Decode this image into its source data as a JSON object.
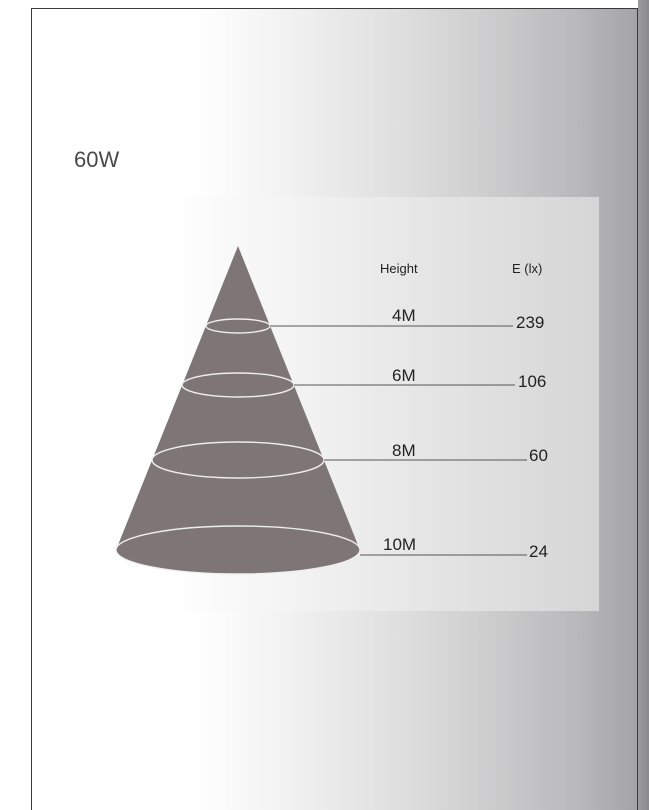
{
  "title": "60W",
  "headers": {
    "height": "Height",
    "illuminance": "E (lx)"
  },
  "rows": [
    {
      "height": "4M",
      "lux": "239"
    },
    {
      "height": "6M",
      "lux": "106"
    },
    {
      "height": "8M",
      "lux": "60"
    },
    {
      "height": "10M",
      "lux": "24"
    }
  ],
  "colors": {
    "cone": "#7e7576",
    "ring": "#eeeeee",
    "leader": "#555555",
    "text": "#222222"
  }
}
